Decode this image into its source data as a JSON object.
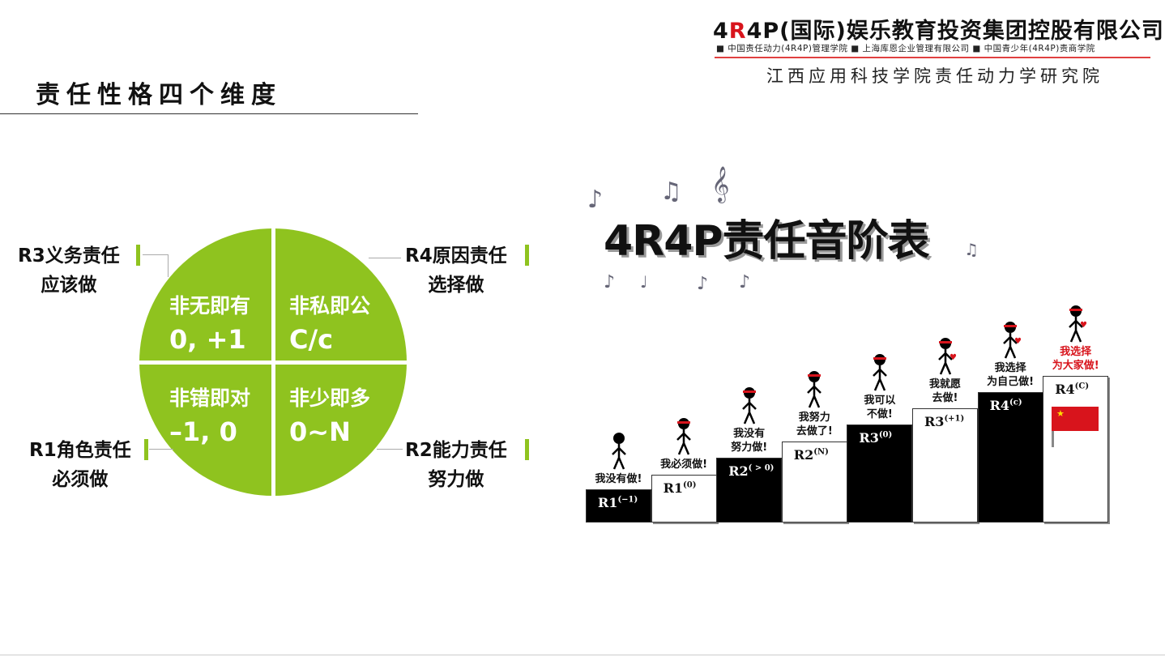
{
  "header": {
    "org_prefix_1": "4",
    "org_prefix_r": "R",
    "org_prefix_2": "4P",
    "org_title_rest": "(国际)娱乐教育投资集团控股有限公司",
    "org_subtitle": "■ 中国责任动力(4R4P)管理学院 ■ 上海库恩企业管理有限公司 ■ 中国青少年(4R4P)责商学院",
    "institute": "江西应用科技学院责任动力学研究院"
  },
  "page_title": "责任性格四个维度",
  "quadrants": [
    {
      "line1": "非无即有",
      "line2": "0, +1"
    },
    {
      "line1": "非私即公",
      "line2": "C/c"
    },
    {
      "line1": "非错即对",
      "line2": "–1, 0"
    },
    {
      "line1": "非少即多",
      "line2": "0~N"
    }
  ],
  "labels": [
    {
      "title": "R3义务责任",
      "sub": "应该做"
    },
    {
      "title": "R4原因责任",
      "sub": "选择做"
    },
    {
      "title": "R1角色责任",
      "sub": "必须做"
    },
    {
      "title": "R2能力责任",
      "sub": "努力做"
    }
  ],
  "stair": {
    "title": "4R4P责任音阶表",
    "steps": [
      {
        "r": "R1",
        "sup": "(−1)",
        "caption": "我没有做!",
        "color": "black"
      },
      {
        "r": "R1",
        "sup": "(0)",
        "caption": "我必须做!",
        "color": "white"
      },
      {
        "r": "R2",
        "sup": "( > 0)",
        "caption": "我没有\n努力做!",
        "color": "black"
      },
      {
        "r": "R2",
        "sup": "(N)",
        "caption": "我努力\n去做了!",
        "color": "white"
      },
      {
        "r": "R3",
        "sup": "(0)",
        "caption": "我可以\n不做!",
        "color": "black"
      },
      {
        "r": "R3",
        "sup": "(+1)",
        "caption": "我就愿\n去做!",
        "color": "white"
      },
      {
        "r": "R4",
        "sup": "(c)",
        "caption": "我选择\n为自己做!",
        "color": "black"
      },
      {
        "r": "R4",
        "sup": "(C)",
        "caption": "我选择\n为大家做!",
        "color": "white"
      }
    ]
  },
  "colors": {
    "green": "#8fc31f",
    "red": "#d8141c"
  }
}
